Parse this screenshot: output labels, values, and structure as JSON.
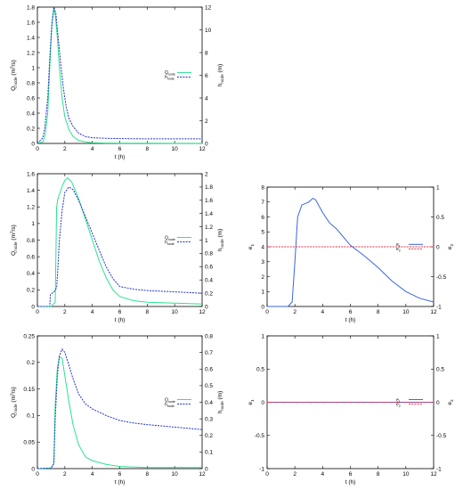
{
  "colors": {
    "q": "#29e38f",
    "h": "#2233cc",
    "e1": "#3a66e0",
    "e2": "#e0334a",
    "axis": "#000000"
  },
  "chart_data": [
    {
      "id": "p1",
      "type": "line",
      "xlabel": "t (h)",
      "ylabel_left": "Q_node (m3/s)",
      "ylabel_right": "h_node (m)",
      "xlim": [
        0,
        12
      ],
      "xticks": [
        "0",
        "2",
        "4",
        "6",
        "8",
        "10",
        "12"
      ],
      "ylim_left": [
        0,
        1.8
      ],
      "yticks_left": [
        "0",
        "0.2",
        "0.4",
        "0.6",
        "0.8",
        "1",
        "1.2",
        "1.4",
        "1.6",
        "1.8"
      ],
      "ylim_right": [
        0,
        12
      ],
      "yticks_right": [
        "0",
        "2",
        "4",
        "6",
        "8",
        "10",
        "12"
      ],
      "legend": {
        "position": "right-middle",
        "entries": [
          "Q_node",
          "h_node"
        ]
      },
      "series": [
        {
          "name": "Q_node",
          "axis": "left",
          "style": "solid",
          "color_key": "q",
          "x": [
            0,
            0.4,
            0.55,
            0.75,
            0.9,
            1.05,
            1.2,
            1.3,
            1.45,
            1.6,
            1.8,
            2.0,
            2.3,
            2.6,
            3.0,
            3.5,
            4,
            5,
            6,
            8,
            10,
            12
          ],
          "y": [
            0,
            0.02,
            0.1,
            0.4,
            1.0,
            1.55,
            1.78,
            1.7,
            1.4,
            1.0,
            0.6,
            0.35,
            0.18,
            0.09,
            0.04,
            0.02,
            0.01,
            0.005,
            0.003,
            0.002,
            0.001,
            0.001
          ]
        },
        {
          "name": "h_node",
          "axis": "right",
          "style": "dashed",
          "color_key": "h",
          "x": [
            0,
            0.4,
            0.55,
            0.75,
            0.9,
            1.05,
            1.2,
            1.35,
            1.5,
            1.7,
            1.9,
            2.1,
            2.3,
            2.6,
            3.0,
            3.5,
            4,
            5,
            6,
            8,
            10,
            12
          ],
          "y": [
            0,
            0.5,
            1.5,
            4.0,
            7.5,
            10.5,
            12.0,
            11.4,
            9.5,
            7.0,
            4.8,
            3.2,
            2.2,
            1.5,
            0.9,
            0.6,
            0.5,
            0.45,
            0.42,
            0.4,
            0.4,
            0.4
          ]
        }
      ]
    },
    {
      "id": "p2",
      "type": "line",
      "xlabel": "t (h)",
      "ylabel_left": "Q_node (m3/s)",
      "ylabel_right": "h_node (m)",
      "xlim": [
        0,
        12
      ],
      "xticks": [
        "0",
        "2",
        "4",
        "6",
        "8",
        "10",
        "12"
      ],
      "ylim_left": [
        0,
        1.6
      ],
      "yticks_left": [
        "0",
        "0.2",
        "0.4",
        "0.6",
        "0.8",
        "1",
        "1.2",
        "1.4",
        "1.6"
      ],
      "ylim_right": [
        0,
        2
      ],
      "yticks_right": [
        "0",
        "0.2",
        "0.4",
        "0.6",
        "0.8",
        "1",
        "1.2",
        "1.4",
        "1.6",
        "1.8",
        "2"
      ],
      "legend": {
        "position": "right-middle",
        "entries": [
          "Q_node",
          "h_node"
        ]
      },
      "series": [
        {
          "name": "Q_node",
          "axis": "left",
          "style": "solid",
          "color_key": "q",
          "x": [
            0,
            1.0,
            1.3,
            1.4,
            1.5,
            1.6,
            1.8,
            2.0,
            2.2,
            2.5,
            3,
            3.5,
            4,
            4.5,
            5,
            5.5,
            6,
            7,
            8,
            10,
            12
          ],
          "y": [
            0,
            0,
            0.05,
            1.2,
            1.3,
            1.35,
            1.45,
            1.52,
            1.55,
            1.5,
            1.3,
            1.05,
            0.8,
            0.55,
            0.35,
            0.2,
            0.12,
            0.07,
            0.05,
            0.04,
            0.03
          ]
        },
        {
          "name": "h_node",
          "axis": "right",
          "style": "dashed",
          "color_key": "h",
          "x": [
            0,
            0.9,
            0.95,
            1.2,
            1.4,
            1.5,
            1.6,
            1.8,
            2.0,
            2.3,
            2.6,
            3,
            3.5,
            4,
            4.5,
            5,
            5.5,
            6,
            7,
            8,
            10,
            12
          ],
          "y": [
            0,
            0,
            0.18,
            0.22,
            0.28,
            0.6,
            1.0,
            1.45,
            1.72,
            1.8,
            1.76,
            1.6,
            1.35,
            1.1,
            0.85,
            0.6,
            0.42,
            0.3,
            0.26,
            0.24,
            0.22,
            0.2
          ]
        }
      ]
    },
    {
      "id": "p3",
      "type": "line",
      "xlabel": "t (h)",
      "ylabel_left": "e1",
      "ylabel_right": "e2",
      "xlim": [
        0,
        12
      ],
      "xticks": [
        "0",
        "2",
        "4",
        "6",
        "8",
        "10",
        "12"
      ],
      "ylim_left": [
        0,
        8
      ],
      "yticks_left": [
        "0",
        "1",
        "2",
        "3",
        "4",
        "5",
        "6",
        "7",
        "8"
      ],
      "ylim_right": [
        -1,
        1
      ],
      "yticks_right": [
        "-1",
        "-0.5",
        "0",
        "0.5",
        "1"
      ],
      "legend": {
        "position": "right-middle",
        "entries": [
          "e1",
          "e2"
        ]
      },
      "series": [
        {
          "name": "e1",
          "axis": "left",
          "style": "solid",
          "color_key": "e1",
          "x": [
            0,
            1.5,
            1.8,
            2.0,
            2.2,
            2.5,
            3.0,
            3.3,
            3.5,
            4,
            4.5,
            5,
            6,
            7,
            8,
            9,
            10,
            11,
            12
          ],
          "y": [
            0,
            0,
            0.3,
            3.0,
            6.0,
            6.8,
            7.0,
            7.25,
            7.15,
            6.3,
            5.6,
            5.2,
            4.1,
            3.4,
            2.6,
            1.7,
            1.0,
            0.55,
            0.3
          ]
        },
        {
          "name": "e2",
          "axis": "right",
          "style": "dashed",
          "color_key": "e2",
          "x": [
            0,
            12
          ],
          "y": [
            0,
            0
          ]
        }
      ]
    },
    {
      "id": "p4",
      "type": "line",
      "xlabel": "t (h)",
      "ylabel_left": "Q_node (m3/s)",
      "ylabel_right": "h_node (m)",
      "xlim": [
        0,
        12
      ],
      "xticks": [
        "0",
        "2",
        "4",
        "6",
        "8",
        "10",
        "12"
      ],
      "ylim_left": [
        0,
        0.25
      ],
      "yticks_left": [
        "0",
        "0.05",
        "0.1",
        "0.15",
        "0.2",
        "0.25"
      ],
      "ylim_right": [
        0,
        0.8
      ],
      "yticks_right": [
        "0",
        "0.1",
        "0.2",
        "0.3",
        "0.4",
        "0.5",
        "0.6",
        "0.7",
        "0.8"
      ],
      "legend": {
        "position": "right-middle",
        "entries": [
          "Q_node",
          "h_node"
        ]
      },
      "series": [
        {
          "name": "Q_node",
          "axis": "left",
          "style": "solid",
          "color_key": "q",
          "x": [
            0,
            1.0,
            1.2,
            1.3,
            1.45,
            1.6,
            1.8,
            2.0,
            2.3,
            2.6,
            3,
            3.5,
            4,
            5,
            6,
            8,
            10,
            12
          ],
          "y": [
            0,
            0.001,
            0.01,
            0.12,
            0.19,
            0.21,
            0.208,
            0.175,
            0.125,
            0.082,
            0.045,
            0.022,
            0.015,
            0.008,
            0.004,
            0.002,
            0.002,
            0.002
          ]
        },
        {
          "name": "h_node",
          "axis": "right",
          "style": "dashed",
          "color_key": "h",
          "x": [
            0,
            1.0,
            1.2,
            1.3,
            1.45,
            1.6,
            1.8,
            2.0,
            2.3,
            2.6,
            3,
            3.5,
            4,
            5,
            6,
            7,
            8,
            10,
            12
          ],
          "y": [
            0,
            0.003,
            0.03,
            0.3,
            0.56,
            0.68,
            0.72,
            0.7,
            0.62,
            0.54,
            0.45,
            0.39,
            0.36,
            0.32,
            0.29,
            0.275,
            0.265,
            0.25,
            0.235
          ]
        }
      ]
    },
    {
      "id": "p5",
      "type": "line",
      "xlabel": "t (h)",
      "ylabel_left": "e1",
      "ylabel_right": "e2",
      "xlim": [
        0,
        12
      ],
      "xticks": [
        "0",
        "2",
        "4",
        "6",
        "8",
        "10",
        "12"
      ],
      "ylim_left": [
        -1,
        1
      ],
      "yticks_left": [
        "-1",
        "-0.5",
        "0",
        "0.5",
        "1"
      ],
      "ylim_right": [
        -1,
        1
      ],
      "yticks_right": [
        "-1",
        "-0.5",
        "0",
        "0.5",
        "1"
      ],
      "legend": {
        "position": "right-middle",
        "entries": [
          "e1",
          "e2"
        ]
      },
      "series": [
        {
          "name": "e1",
          "axis": "left",
          "style": "solid",
          "color_key": "e1",
          "x": [
            0,
            12
          ],
          "y": [
            0,
            0
          ]
        },
        {
          "name": "e2",
          "axis": "right",
          "style": "dashed",
          "color_key": "e2",
          "x": [
            0,
            12
          ],
          "y": [
            0,
            0
          ]
        }
      ]
    }
  ]
}
